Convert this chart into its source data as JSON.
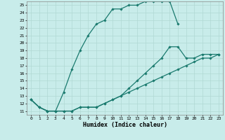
{
  "xlabel": "Humidex (Indice chaleur)",
  "bg_color": "#c8ecea",
  "line_color": "#1a7a6e",
  "xlim": [
    -0.5,
    23.5
  ],
  "ylim": [
    10.5,
    25.5
  ],
  "xticks": [
    0,
    1,
    2,
    3,
    4,
    5,
    6,
    7,
    8,
    9,
    10,
    11,
    12,
    13,
    14,
    15,
    16,
    17,
    18,
    19,
    20,
    21,
    22,
    23
  ],
  "yticks": [
    11,
    12,
    13,
    14,
    15,
    16,
    17,
    18,
    19,
    20,
    21,
    22,
    23,
    24,
    25
  ],
  "curve1_x": [
    0,
    1,
    2,
    3,
    4,
    5,
    6,
    7,
    8,
    9,
    10,
    11,
    12,
    13,
    14,
    15,
    16,
    17,
    18
  ],
  "curve1_y": [
    12.5,
    11.5,
    11.0,
    11.0,
    13.5,
    16.5,
    19.0,
    21.0,
    22.5,
    23.0,
    24.5,
    24.5,
    25.0,
    25.0,
    25.5,
    25.5,
    25.5,
    25.5,
    22.5
  ],
  "curve2_x": [
    0,
    1,
    2,
    3,
    4,
    5,
    6,
    7,
    8,
    9,
    10,
    11,
    12,
    13,
    14,
    15,
    16,
    17,
    18,
    19,
    20,
    21,
    22,
    23
  ],
  "curve2_y": [
    12.5,
    11.5,
    11.0,
    11.0,
    11.0,
    11.0,
    11.5,
    11.5,
    11.5,
    12.0,
    12.5,
    13.0,
    14.0,
    15.0,
    16.0,
    17.0,
    18.0,
    19.5,
    19.5,
    18.0,
    18.0,
    18.5,
    18.5,
    18.5
  ],
  "curve3_x": [
    0,
    1,
    2,
    3,
    4,
    5,
    6,
    7,
    8,
    9,
    10,
    11,
    12,
    13,
    14,
    15,
    16,
    17,
    18,
    19,
    20,
    21,
    22,
    23
  ],
  "curve3_y": [
    12.5,
    11.5,
    11.0,
    11.0,
    11.0,
    11.0,
    11.5,
    11.5,
    11.5,
    12.0,
    12.5,
    13.0,
    13.5,
    14.0,
    14.5,
    15.0,
    15.5,
    16.0,
    16.5,
    17.0,
    17.5,
    18.0,
    18.0,
    18.5
  ],
  "marker": "D",
  "markersize": 1.8,
  "linewidth": 0.9
}
